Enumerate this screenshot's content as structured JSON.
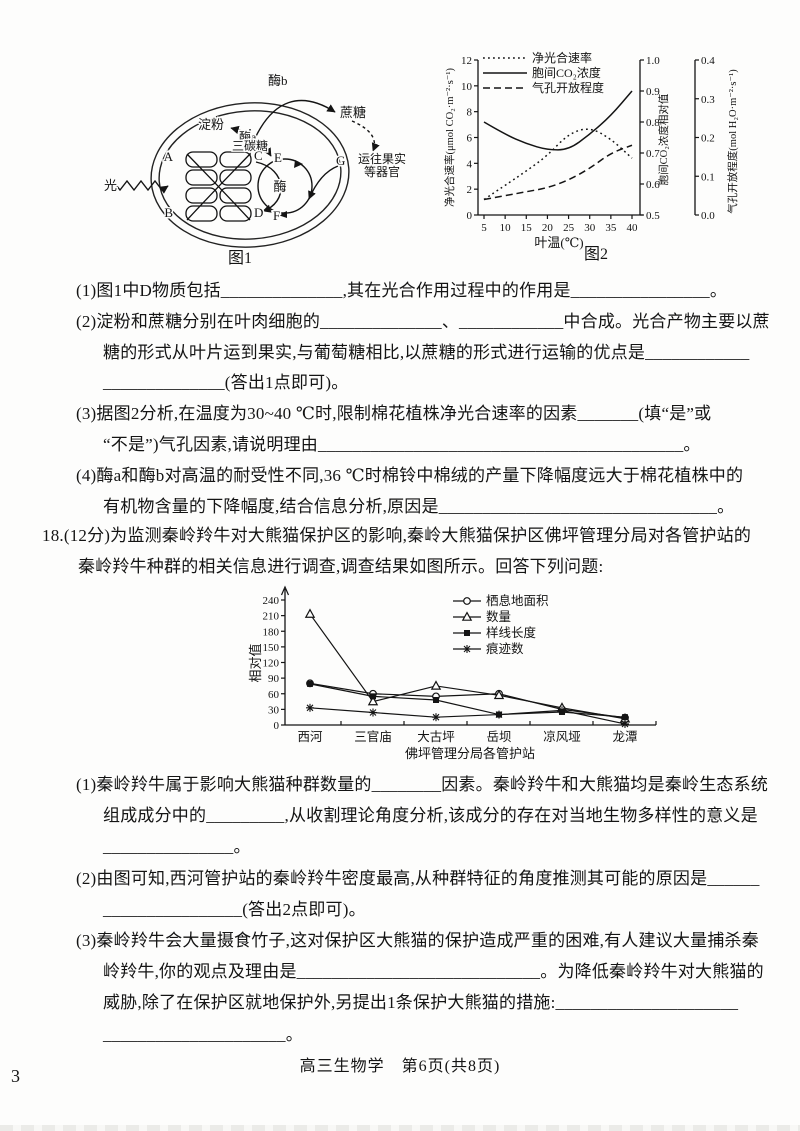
{
  "page": {
    "corner_number": "3",
    "footer": "高三生物学　第6页(共8页)"
  },
  "fig1": {
    "caption": "图1",
    "labels": {
      "light": "光",
      "starch": "淀粉",
      "enzyme_a": "酶a",
      "triose": "三碳糖",
      "enzyme_b": "酶b",
      "sucrose": "蔗糖",
      "enzyme": "酶",
      "to_fruit_line1": "运往果实",
      "to_fruit_line2": "等器官",
      "A": "A",
      "B": "B",
      "C": "C",
      "D": "D",
      "E": "E",
      "F": "F",
      "G": "G"
    }
  },
  "fig2": {
    "caption": "图2"
  },
  "q17": {
    "lines": [
      {
        "text": "(1)图1中D物质包括______________,其在光合作用过程中的作用是________________。"
      },
      {
        "text": "(2)淀粉和蔗糖分别在叶肉细胞的______________、____________中合成。光合产物主要以蔗"
      },
      {
        "text": "糖的形式从叶片运到果实,与葡萄糖相比,以蔗糖的形式进行运输的优点是____________"
      },
      {
        "text": "______________(答出1点即可)。"
      },
      {
        "text": "(3)据图2分析,在温度为30~40 ℃时,限制棉花植株净光合速率的因素_______(填“是”或"
      },
      {
        "text": "“不是”)气孔因素,请说明理由__________________________________________。"
      },
      {
        "text": "(4)酶a和酶b对高温的耐受性不同,36 ℃时棉铃中棉绒的产量下降幅度远大于棉花植株中的"
      },
      {
        "text": "有机物含量的下降幅度,结合信息分析,原因是________________________________。"
      }
    ]
  },
  "q18": {
    "intro_lines": [
      "18.(12分)为监测秦岭羚牛对大熊猫保护区的影响,秦岭大熊猫保护区佛坪管理分局对各管护站的",
      "秦岭羚牛种群的相关信息进行调查,调查结果如图所示。回答下列问题:"
    ],
    "lines": [
      {
        "text": "(1)秦岭羚牛属于影响大熊猫种群数量的________因素。秦岭羚牛和大熊猫均是秦岭生态系统"
      },
      {
        "text": "组成成分中的_________,从收割理论角度分析,该成分的存在对当地生物多样性的意义是"
      },
      {
        "text": "_______________。"
      },
      {
        "text": "(2)由图可知,西河管护站的秦岭羚牛密度最高,从种群特征的角度推测其可能的原因是______"
      },
      {
        "text": "________________(答出2点即可)。"
      },
      {
        "text": "(3)秦岭羚牛会大量摄食竹子,这对保护区大熊猫的保护造成严重的困难,有人建议大量捕杀秦"
      },
      {
        "text": "岭羚牛,你的观点及理由是____________________________。为降低秦岭羚牛对大熊猫的"
      },
      {
        "text": "威胁,除了在保护区就地保护外,另提出1条保护大熊猫的措施:_____________________"
      },
      {
        "text": "_____________________。"
      }
    ]
  },
  "chart_data": [
    {
      "id": "fig2",
      "type": "line",
      "xlabel": "叶温(℃)",
      "x": [
        5,
        10,
        15,
        20,
        25,
        30,
        35,
        40
      ],
      "axes": {
        "left": {
          "label": "净光合速率(μmol CO₂·m⁻²·s⁻¹)",
          "range": [
            0,
            12
          ],
          "ticks": [
            0,
            2,
            4,
            6,
            8,
            10,
            12
          ]
        },
        "right1": {
          "label": "胞间CO₂浓度相对值",
          "range": [
            0.5,
            1.0
          ],
          "ticks": [
            0.5,
            0.6,
            0.7,
            0.8,
            0.9,
            1.0
          ]
        },
        "right2": {
          "label": "气孔开放程度(mol H₂O·m⁻²·s⁻¹)",
          "range": [
            0,
            0.4
          ],
          "ticks": [
            0.0,
            0.1,
            0.2,
            0.3,
            0.4
          ]
        }
      },
      "series": [
        {
          "name": "净光合速率",
          "axis": "left",
          "style": "dotted",
          "values": [
            1.2,
            2.3,
            3.4,
            4.6,
            6.3,
            6.8,
            5.9,
            4.4
          ]
        },
        {
          "name": "胞间CO₂浓度",
          "axis": "right1",
          "style": "solid",
          "values": [
            0.8,
            0.76,
            0.73,
            0.71,
            0.71,
            0.76,
            0.82,
            0.9
          ]
        },
        {
          "name": "气孔开放程度",
          "axis": "right2",
          "style": "dashed",
          "values": [
            0.04,
            0.05,
            0.06,
            0.07,
            0.09,
            0.12,
            0.16,
            0.18
          ]
        }
      ],
      "legend_position": "top-left",
      "grid": false
    },
    {
      "id": "q18-chart",
      "type": "line",
      "ylabel": "相对值",
      "xlabel": "佛坪管理分局各管护站",
      "categories": [
        "西河",
        "三官庙",
        "大古坪",
        "岳坝",
        "凉风垭",
        "龙潭"
      ],
      "ylim": [
        0,
        240
      ],
      "yticks": [
        0,
        30,
        60,
        90,
        120,
        150,
        180,
        210,
        240
      ],
      "series": [
        {
          "name": "栖息地面积",
          "marker": "circle",
          "values": [
            80,
            60,
            55,
            60,
            30,
            14
          ]
        },
        {
          "name": "数量",
          "marker": "triangle",
          "values": [
            213,
            45,
            75,
            57,
            33,
            12
          ]
        },
        {
          "name": "样线长度",
          "marker": "square",
          "values": [
            79,
            55,
            48,
            20,
            25,
            15
          ]
        },
        {
          "name": "痕迹数",
          "marker": "asterisk",
          "values": [
            33,
            24,
            15,
            20,
            28,
            2
          ]
        }
      ],
      "legend_position": "right",
      "grid": false
    }
  ]
}
